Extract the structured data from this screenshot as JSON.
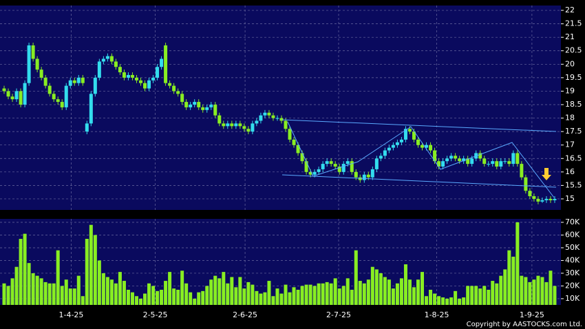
{
  "chart_data": [
    {
      "type": "candlestick",
      "xlim": [
        -1,
        134.5
      ],
      "xticks": [
        {
          "value": 16.2,
          "label": "1-4-25"
        },
        {
          "value": 36.5,
          "label": "2-5-25"
        },
        {
          "value": 58.2,
          "label": "2-6-25"
        },
        {
          "value": 80.8,
          "label": "2-7-25"
        },
        {
          "value": 104.5,
          "label": "1-8-25"
        },
        {
          "value": 127.5,
          "label": "1-9-25"
        }
      ],
      "ylim": [
        14.59,
        22.18
      ],
      "yticks": [
        15,
        15.5,
        16,
        16.5,
        17,
        17.5,
        18,
        18.5,
        19,
        19.5,
        20,
        20.5,
        21,
        21.5,
        22
      ],
      "grid": true,
      "up_color": "#33ddee",
      "down_color": "#88ee22",
      "open": [
        19.1,
        19.0,
        18.8,
        18.7,
        19.0,
        18.5,
        19.3,
        20.7,
        20.2,
        19.8,
        19.5,
        19.2,
        18.9,
        18.7,
        18.6,
        18.4,
        19.2,
        19.4,
        19.3,
        19.5,
        17.5,
        17.8,
        18.9,
        19.5,
        20.1,
        20.2,
        20.3,
        20.1,
        19.9,
        19.7,
        19.5,
        19.6,
        19.5,
        19.4,
        19.3,
        19.1,
        19.4,
        19.5,
        19.9,
        20.7,
        19.3,
        19.2,
        19.0,
        18.9,
        18.6,
        18.4,
        18.5,
        18.6,
        18.4,
        18.3,
        18.4,
        18.5,
        18.1,
        17.8,
        17.7,
        17.8,
        17.7,
        17.8,
        17.7,
        17.6,
        17.5,
        17.8,
        17.9,
        18.1,
        18.2,
        18.1,
        18.0,
        18.0,
        17.9,
        17.6,
        17.2,
        17.0,
        16.7,
        16.4,
        16.0,
        15.9,
        16.0,
        16.1,
        16.3,
        16.4,
        16.3,
        16.2,
        16.0,
        16.3,
        16.4,
        16.0,
        15.8,
        15.7,
        15.9,
        15.8,
        16.1,
        16.5,
        16.6,
        16.8,
        16.9,
        17.0,
        17.1,
        17.2,
        17.6,
        17.5,
        17.2,
        17.0,
        16.9,
        17.0,
        16.8,
        16.4,
        16.2,
        16.4,
        16.5,
        16.6,
        16.5,
        16.4,
        16.5,
        16.3,
        16.5,
        16.7,
        16.5,
        16.3,
        16.3,
        16.4,
        16.2,
        16.4,
        16.4,
        16.3,
        16.7,
        16.3,
        15.8,
        15.3,
        15.1,
        15.0,
        14.9,
        14.95,
        15.0,
        14.95
      ],
      "high": [
        19.2,
        19.1,
        18.9,
        19.1,
        19.1,
        19.4,
        20.8,
        20.8,
        20.3,
        19.9,
        19.6,
        19.3,
        19.0,
        18.8,
        18.7,
        19.3,
        19.5,
        19.5,
        19.6,
        19.6,
        17.9,
        19.0,
        19.6,
        20.2,
        20.3,
        20.4,
        20.4,
        20.2,
        20.0,
        19.8,
        19.7,
        19.7,
        19.6,
        19.5,
        19.4,
        19.5,
        19.6,
        20.0,
        20.3,
        20.8,
        19.4,
        19.3,
        19.1,
        19.0,
        18.7,
        18.6,
        18.7,
        18.7,
        18.5,
        18.5,
        18.6,
        18.6,
        18.2,
        17.9,
        17.9,
        17.9,
        17.9,
        17.9,
        17.8,
        17.7,
        17.9,
        18.0,
        18.2,
        18.3,
        18.3,
        18.2,
        18.1,
        18.1,
        18.0,
        17.7,
        17.3,
        17.1,
        16.8,
        16.5,
        16.1,
        16.1,
        16.2,
        16.4,
        16.5,
        16.5,
        16.4,
        16.3,
        16.4,
        16.5,
        16.5,
        16.1,
        15.9,
        16.0,
        16.0,
        16.2,
        16.6,
        16.7,
        16.9,
        17.0,
        17.1,
        17.2,
        17.3,
        17.7,
        17.7,
        17.6,
        17.3,
        17.1,
        17.1,
        17.1,
        16.9,
        16.5,
        16.5,
        16.6,
        16.7,
        16.7,
        16.6,
        16.6,
        16.6,
        16.6,
        16.8,
        16.8,
        16.6,
        16.4,
        16.5,
        16.5,
        16.5,
        16.5,
        16.5,
        16.8,
        16.8,
        16.4,
        15.9,
        15.4,
        15.2,
        15.1,
        15.05,
        15.1,
        15.1,
        15.1
      ],
      "low": [
        18.9,
        18.7,
        18.6,
        18.6,
        18.4,
        18.4,
        19.2,
        20.1,
        19.7,
        19.4,
        19.1,
        18.8,
        18.6,
        18.5,
        18.3,
        18.3,
        19.1,
        19.2,
        19.2,
        19.2,
        17.4,
        17.7,
        18.8,
        19.4,
        20.0,
        20.1,
        20.0,
        19.8,
        19.6,
        19.4,
        19.4,
        19.4,
        19.3,
        19.2,
        19.0,
        19.0,
        19.3,
        19.4,
        19.8,
        19.2,
        19.1,
        18.9,
        18.8,
        18.5,
        18.3,
        18.3,
        18.4,
        18.3,
        18.2,
        18.2,
        18.3,
        18.0,
        17.7,
        17.6,
        17.6,
        17.6,
        17.6,
        17.6,
        17.5,
        17.4,
        17.4,
        17.7,
        17.8,
        18.0,
        18.0,
        17.9,
        17.9,
        17.8,
        17.5,
        17.1,
        16.9,
        16.6,
        16.3,
        15.9,
        15.8,
        15.8,
        15.9,
        16.0,
        16.2,
        16.2,
        16.1,
        15.9,
        15.9,
        16.2,
        15.9,
        15.7,
        15.6,
        15.6,
        15.7,
        15.7,
        16.0,
        16.4,
        16.5,
        16.7,
        16.8,
        16.9,
        17.0,
        17.1,
        17.4,
        17.1,
        16.9,
        16.8,
        16.8,
        16.7,
        16.3,
        16.1,
        16.1,
        16.3,
        16.4,
        16.4,
        16.3,
        16.3,
        16.2,
        16.2,
        16.4,
        16.4,
        16.2,
        16.2,
        16.2,
        16.1,
        16.1,
        16.3,
        16.2,
        16.2,
        16.2,
        15.7,
        15.2,
        15.0,
        14.9,
        14.8,
        14.85,
        14.85,
        14.85,
        14.85
      ],
      "close": [
        19.0,
        18.8,
        18.7,
        19.0,
        18.5,
        19.3,
        20.7,
        20.2,
        19.8,
        19.5,
        19.2,
        18.9,
        18.7,
        18.6,
        18.4,
        19.2,
        19.4,
        19.3,
        19.5,
        19.3,
        17.8,
        18.9,
        19.5,
        20.1,
        20.2,
        20.3,
        20.1,
        19.9,
        19.7,
        19.5,
        19.6,
        19.5,
        19.4,
        19.3,
        19.1,
        19.4,
        19.5,
        19.9,
        20.2,
        19.3,
        19.2,
        19.0,
        18.9,
        18.6,
        18.4,
        18.5,
        18.6,
        18.4,
        18.3,
        18.4,
        18.5,
        18.1,
        17.8,
        17.7,
        17.8,
        17.7,
        17.8,
        17.7,
        17.6,
        17.5,
        17.8,
        17.9,
        18.1,
        18.2,
        18.1,
        18.0,
        18.0,
        17.9,
        17.6,
        17.2,
        17.0,
        16.7,
        16.4,
        16.0,
        15.9,
        16.0,
        16.1,
        16.3,
        16.4,
        16.3,
        16.2,
        16.0,
        16.3,
        16.4,
        16.0,
        15.8,
        15.7,
        15.9,
        15.8,
        16.1,
        16.5,
        16.6,
        16.8,
        16.9,
        17.0,
        17.1,
        17.2,
        17.6,
        17.5,
        17.2,
        17.0,
        16.9,
        17.0,
        16.8,
        16.4,
        16.2,
        16.4,
        16.5,
        16.6,
        16.5,
        16.4,
        16.5,
        16.3,
        16.5,
        16.7,
        16.5,
        16.3,
        16.3,
        16.4,
        16.2,
        16.4,
        16.4,
        16.3,
        16.7,
        16.3,
        15.8,
        15.3,
        15.1,
        15.0,
        14.9,
        14.95,
        15.0,
        14.95,
        15.0
      ]
    },
    {
      "type": "bar",
      "xlim": [
        -1,
        134.5
      ],
      "ylim": [
        5100,
        72700
      ],
      "yticks": [
        {
          "value": 10000,
          "label": "10K"
        },
        {
          "value": 20000,
          "label": "20K"
        },
        {
          "value": 30000,
          "label": "30K"
        },
        {
          "value": 40000,
          "label": "40K"
        },
        {
          "value": 50000,
          "label": "50K"
        },
        {
          "value": 60000,
          "label": "60K"
        },
        {
          "value": 70000,
          "label": "70K"
        }
      ],
      "grid": true,
      "color": "#88ee22",
      "values": [
        22000,
        20000,
        26000,
        35000,
        57000,
        61000,
        38000,
        30000,
        28000,
        26000,
        23000,
        22000,
        22000,
        48000,
        20000,
        25000,
        18000,
        18000,
        28000,
        12000,
        57000,
        68000,
        60000,
        40000,
        30000,
        27000,
        25000,
        22000,
        31000,
        24000,
        17000,
        15000,
        12000,
        10000,
        14000,
        22000,
        20000,
        16000,
        17000,
        24000,
        31000,
        18000,
        17000,
        32000,
        22000,
        15000,
        10000,
        15000,
        16000,
        20000,
        25000,
        28000,
        26000,
        31000,
        22000,
        27000,
        19000,
        27000,
        18000,
        23000,
        21000,
        16000,
        14000,
        15000,
        24000,
        12000,
        18000,
        14000,
        21000,
        15000,
        19000,
        17000,
        20000,
        21000,
        21000,
        20000,
        22000,
        22000,
        23000,
        22000,
        26000,
        18000,
        20000,
        26000,
        17000,
        48000,
        24000,
        22000,
        25000,
        35000,
        33000,
        30000,
        27000,
        25000,
        18000,
        22000,
        26000,
        37000,
        25000,
        19000,
        25000,
        31000,
        12000,
        17000,
        14000,
        12000,
        11000,
        10000,
        11000,
        16000,
        10000,
        11000,
        20000,
        20000,
        20000,
        18000,
        20000,
        17000,
        24000,
        22000,
        28000,
        33000,
        48000,
        43000,
        70000,
        28000,
        27000,
        23000,
        25000,
        28000,
        27000,
        23000,
        32000,
        20000
      ]
    }
  ],
  "footer": {
    "copyright": "Copyright by AASTOCKS.com Ltd."
  }
}
